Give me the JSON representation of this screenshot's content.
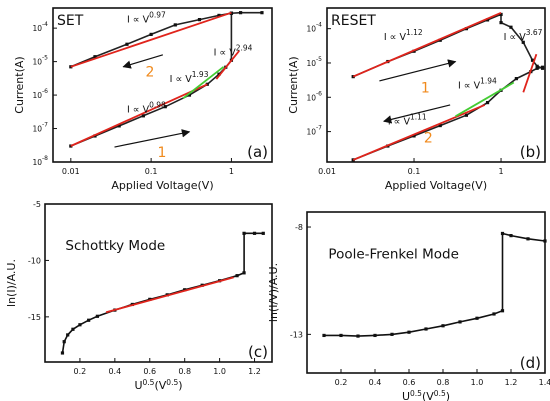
{
  "chart_data": [
    {
      "id": "a",
      "type": "line",
      "scale": "log-log",
      "title": "SET",
      "panel_label": "(a)",
      "xlabel": "Applied Voltage(V)",
      "ylabel": "Current(A)",
      "xlim": [
        0.006,
        3.2
      ],
      "ylim": [
        1e-08,
        0.0004
      ],
      "xticks": [
        {
          "v": 0.01,
          "t": "0.01"
        },
        {
          "v": 0.1,
          "t": "0.1"
        },
        {
          "v": 1,
          "t": "1"
        }
      ],
      "yticks": [
        {
          "v": 1e-08,
          "b": "10",
          "e": "-8"
        },
        {
          "v": 1e-07,
          "b": "10",
          "e": "-7"
        },
        {
          "v": 1e-06,
          "b": "10",
          "e": "-6"
        },
        {
          "v": 1e-05,
          "b": "10",
          "e": "-5"
        },
        {
          "v": 0.0001,
          "b": "10",
          "e": "-4"
        }
      ],
      "series": [
        {
          "role": "data-forward",
          "color": "#222222",
          "points": [
            [
              0.01,
              3e-08
            ],
            [
              0.02,
              6e-08
            ],
            [
              0.04,
              1.2e-07
            ],
            [
              0.08,
              2.4e-07
            ],
            [
              0.15,
              4.5e-07
            ],
            [
              0.3,
              1e-06
            ],
            [
              0.5,
              2.1e-06
            ],
            [
              0.7,
              4.2e-06
            ],
            [
              0.85,
              6.8e-06
            ],
            [
              1.0,
              1.1e-05
            ],
            [
              1.0,
              0.00028
            ],
            [
              1.3,
              0.00029
            ],
            [
              2.4,
              0.00029
            ]
          ]
        },
        {
          "role": "data-backward",
          "color": "#222222",
          "points": [
            [
              0.01,
              7e-06
            ],
            [
              0.02,
              1.4e-05
            ],
            [
              0.05,
              3.3e-05
            ],
            [
              0.1,
              6.5e-05
            ],
            [
              0.2,
              0.000125
            ],
            [
              0.4,
              0.00018
            ],
            [
              0.7,
              0.00024
            ],
            [
              1.0,
              0.00028
            ]
          ]
        },
        {
          "role": "fit",
          "color": "#e0241c",
          "points": [
            [
              0.01,
              3e-08
            ],
            [
              0.5,
              2.1e-06
            ]
          ]
        },
        {
          "role": "fit",
          "color": "#e0241c",
          "points": [
            [
              0.01,
              7e-06
            ],
            [
              1.0,
              0.00029
            ]
          ]
        },
        {
          "role": "fit",
          "color": "#44cc33",
          "points": [
            [
              0.25,
              8e-07
            ],
            [
              0.8,
              7e-06
            ]
          ]
        },
        {
          "role": "fit",
          "color": "#e0241c",
          "points": [
            [
              0.65,
              3e-06
            ],
            [
              1.25,
              2.1e-05
            ]
          ]
        }
      ],
      "annotations": [
        {
          "base": "I ∝ V",
          "sup": "0.97",
          "x": 0.05,
          "y": 0.00015
        },
        {
          "base": "I ∝ V",
          "sup": "2.94",
          "x": 0.6,
          "y": 1.5e-05
        },
        {
          "base": "I ∝ V",
          "sup": "1.93",
          "x": 0.17,
          "y": 2.5e-06
        },
        {
          "base": "I ∝ V",
          "sup": "0.98",
          "x": 0.05,
          "y": 3e-07
        }
      ],
      "arrows": [
        {
          "from": [
            0.14,
            1.6e-05
          ],
          "to": [
            0.045,
            7e-06
          ]
        },
        {
          "from": [
            0.035,
            2.8e-08
          ],
          "to": [
            0.3,
            8e-08
          ]
        }
      ],
      "numbers": [
        {
          "text": "2",
          "color": "#f08a1c",
          "x": 0.085,
          "y": 3.6e-06
        },
        {
          "text": "1",
          "color": "#f08a1c",
          "x": 0.12,
          "y": 1.4e-08
        }
      ]
    },
    {
      "id": "b",
      "type": "line",
      "scale": "log-log",
      "title": "RESET",
      "panel_label": "(b)",
      "xlabel": "Applied Voltage(V)",
      "ylabel": "Current(A)",
      "xlim": [
        0.01,
        3.2
      ],
      "ylim": [
        1.3e-08,
        0.0004
      ],
      "xticks": [
        {
          "v": 0.01,
          "t": "0.01"
        },
        {
          "v": 0.1,
          "t": "0.1"
        },
        {
          "v": 1,
          "t": "1"
        }
      ],
      "yticks": [
        {
          "v": 1e-07,
          "b": "10",
          "e": "-7"
        },
        {
          "v": 1e-06,
          "b": "10",
          "e": "-6"
        },
        {
          "v": 1e-05,
          "b": "10",
          "e": "-5"
        },
        {
          "v": 0.0001,
          "b": "10",
          "e": "-4"
        }
      ],
      "series": [
        {
          "role": "data-top",
          "color": "#222222",
          "points": [
            [
              0.02,
              4e-06
            ],
            [
              0.05,
              1.1e-05
            ],
            [
              0.1,
              2.2e-05
            ],
            [
              0.2,
              4.6e-05
            ],
            [
              0.4,
              0.0001
            ],
            [
              0.7,
              0.00018
            ],
            [
              1.0,
              0.00026
            ],
            [
              1.0,
              0.00015
            ],
            [
              1.3,
              0.00011
            ],
            [
              1.8,
              4e-05
            ],
            [
              2.3,
              1.2e-05
            ],
            [
              2.6,
              8e-06
            ],
            [
              3.0,
              7e-06
            ]
          ]
        },
        {
          "role": "data-bottom",
          "color": "#222222",
          "points": [
            [
              0.02,
              1.5e-08
            ],
            [
              0.05,
              3.8e-08
            ],
            [
              0.1,
              7.5e-08
            ],
            [
              0.2,
              1.5e-07
            ],
            [
              0.4,
              3e-07
            ],
            [
              0.7,
              7e-07
            ],
            [
              1.0,
              1.6e-06
            ],
            [
              1.5,
              3.5e-06
            ],
            [
              2.2,
              5.6e-06
            ],
            [
              2.6,
              7e-06
            ],
            [
              3.0,
              7.5e-06
            ]
          ]
        },
        {
          "role": "fit",
          "color": "#e0241c",
          "points": [
            [
              0.02,
              4e-06
            ],
            [
              1.0,
              0.00029
            ]
          ]
        },
        {
          "role": "fit",
          "color": "#e0241c",
          "points": [
            [
              0.02,
              1.5e-08
            ],
            [
              0.65,
              6e-07
            ]
          ]
        },
        {
          "role": "fit",
          "color": "#44cc33",
          "points": [
            [
              0.3,
              2.8e-07
            ],
            [
              1.4,
              2.7e-06
            ]
          ]
        },
        {
          "role": "fit",
          "color": "#e0241c",
          "points": [
            [
              1.8,
              1.4e-06
            ],
            [
              2.55,
              1.8e-05
            ]
          ]
        }
      ],
      "annotations": [
        {
          "base": "I ∝ V",
          "sup": "1.12",
          "x": 0.045,
          "y": 4.7e-05
        },
        {
          "base": "I ∝ V",
          "sup": "3.67",
          "x": 1.07,
          "y": 4.7e-05
        },
        {
          "base": "I ∝ V",
          "sup": "1.94",
          "x": 0.32,
          "y": 1.8e-06
        },
        {
          "base": "I ∝ V",
          "sup": "1.11",
          "x": 0.05,
          "y": 1.6e-07
        }
      ],
      "arrows": [
        {
          "from": [
            0.04,
            3e-06
          ],
          "to": [
            0.3,
            1.1e-05
          ]
        },
        {
          "from": [
            0.26,
            6e-07
          ],
          "to": [
            0.045,
            2e-07
          ]
        }
      ],
      "numbers": [
        {
          "text": "1",
          "color": "#f08a1c",
          "x": 0.12,
          "y": 1.4e-06
        },
        {
          "text": "2",
          "color": "#f08a1c",
          "x": 0.13,
          "y": 4.8e-08
        }
      ]
    },
    {
      "id": "c",
      "type": "line",
      "scale": "linear",
      "title": "Schottky Mode",
      "panel_label": "(c)",
      "xlabel": "U^0.5(V^0.5)",
      "ylabel": "ln(I)/A.U.",
      "xlim": [
        0,
        1.3
      ],
      "ylim": [
        -19,
        -5
      ],
      "xticks": [
        {
          "v": 0.2,
          "t": "0.2"
        },
        {
          "v": 0.4,
          "t": "0.4"
        },
        {
          "v": 0.6,
          "t": "0.6"
        },
        {
          "v": 0.8,
          "t": "0.8"
        },
        {
          "v": 1.0,
          "t": "1.0"
        },
        {
          "v": 1.2,
          "t": "1.2"
        }
      ],
      "yticks": [
        {
          "v": -5,
          "t": "-5"
        },
        {
          "v": -10,
          "t": "-10"
        },
        {
          "v": -15,
          "t": "-15"
        }
      ],
      "series": [
        {
          "role": "data",
          "color": "#111111",
          "points": [
            [
              0.1,
              -18.2
            ],
            [
              0.11,
              -17.2
            ],
            [
              0.13,
              -16.6
            ],
            [
              0.16,
              -16.1
            ],
            [
              0.2,
              -15.7
            ],
            [
              0.25,
              -15.3
            ],
            [
              0.3,
              -14.95
            ],
            [
              0.4,
              -14.4
            ],
            [
              0.5,
              -13.9
            ],
            [
              0.6,
              -13.45
            ],
            [
              0.7,
              -13.05
            ],
            [
              0.8,
              -12.6
            ],
            [
              0.9,
              -12.2
            ],
            [
              1.0,
              -11.8
            ],
            [
              1.1,
              -11.35
            ],
            [
              1.14,
              -11.1
            ],
            [
              1.14,
              -7.6
            ],
            [
              1.2,
              -7.6
            ],
            [
              1.25,
              -7.6
            ]
          ]
        },
        {
          "role": "fit",
          "color": "#e0241c",
          "points": [
            [
              0.35,
              -14.6
            ],
            [
              1.08,
              -11.5
            ]
          ]
        }
      ]
    },
    {
      "id": "d",
      "type": "line",
      "scale": "linear",
      "title": "Poole-Frenkel Mode",
      "panel_label": "(d)",
      "xlabel": "U^0.5(V^0.5)",
      "ylabel": "ln(I/V)/A.U.",
      "xlim": [
        0,
        1.4
      ],
      "ylim": [
        -14.8,
        -7.3
      ],
      "xticks": [
        {
          "v": 0.2,
          "t": "0.2"
        },
        {
          "v": 0.4,
          "t": "0.4"
        },
        {
          "v": 0.6,
          "t": "0.6"
        },
        {
          "v": 0.8,
          "t": "0.8"
        },
        {
          "v": 1.0,
          "t": "1.0"
        },
        {
          "v": 1.2,
          "t": "1.2"
        },
        {
          "v": 1.4,
          "t": "1.4"
        }
      ],
      "yticks": [
        {
          "v": -8,
          "t": "-8"
        },
        {
          "v": -13,
          "t": "-13"
        }
      ],
      "series": [
        {
          "role": "data",
          "color": "#111111",
          "points": [
            [
              0.1,
              -13.05
            ],
            [
              0.2,
              -13.05
            ],
            [
              0.3,
              -13.08
            ],
            [
              0.4,
              -13.05
            ],
            [
              0.5,
              -13.0
            ],
            [
              0.6,
              -12.9
            ],
            [
              0.7,
              -12.75
            ],
            [
              0.8,
              -12.6
            ],
            [
              0.9,
              -12.42
            ],
            [
              1.0,
              -12.25
            ],
            [
              1.1,
              -12.05
            ],
            [
              1.15,
              -11.9
            ],
            [
              1.15,
              -8.3
            ],
            [
              1.2,
              -8.4
            ],
            [
              1.3,
              -8.55
            ],
            [
              1.4,
              -8.65
            ]
          ]
        }
      ]
    }
  ]
}
